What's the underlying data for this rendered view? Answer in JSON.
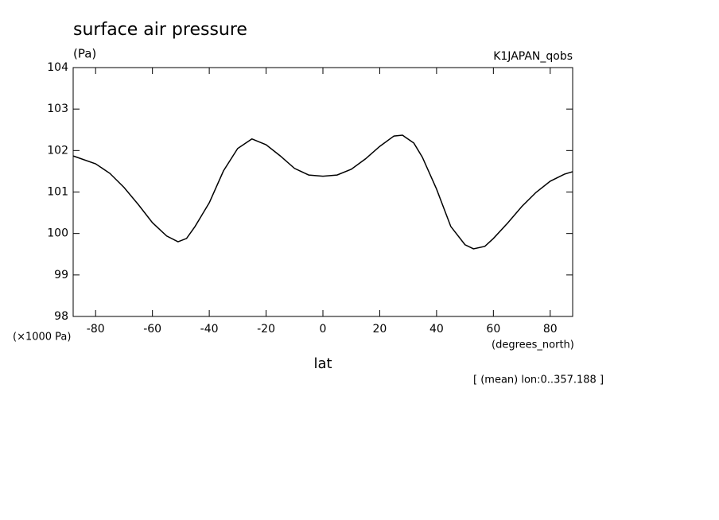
{
  "chart_data": {
    "type": "line",
    "title": "surface air pressure",
    "y_unit": "(Pa)",
    "dataset": "K1JAPAN_qobs",
    "y_scale_note": "(×1000 Pa)",
    "x_unit": "(degrees_north)",
    "x_label": "lat",
    "note": "[ (mean) lon:0..357.188 ]",
    "x": [
      -87.9,
      -80,
      -75,
      -70,
      -65,
      -60,
      -55,
      -51,
      -48,
      -45,
      -40,
      -35,
      -30,
      -25,
      -20,
      -15,
      -10,
      -5,
      0,
      5,
      10,
      15,
      20,
      25,
      28,
      32,
      35,
      40,
      45,
      50,
      53,
      57,
      60,
      65,
      70,
      75,
      80,
      85,
      87.9
    ],
    "series": [
      {
        "color": "#000000",
        "values": [
          101.87,
          101.68,
          101.45,
          101.11,
          100.7,
          100.26,
          99.94,
          99.8,
          99.88,
          100.17,
          100.74,
          101.51,
          102.05,
          102.28,
          102.14,
          101.87,
          101.57,
          101.41,
          101.38,
          101.41,
          101.55,
          101.8,
          102.1,
          102.35,
          102.37,
          102.18,
          101.84,
          101.07,
          100.17,
          99.73,
          99.63,
          99.69,
          99.88,
          100.25,
          100.65,
          100.99,
          101.26,
          101.43,
          101.49
        ]
      }
    ],
    "xlim": [
      -87.9,
      87.9
    ],
    "ylim": [
      98,
      104
    ],
    "xticks": [
      -80,
      -60,
      -40,
      -20,
      0,
      20,
      40,
      60,
      80
    ],
    "yticks": [
      98,
      99,
      100,
      101,
      102,
      103,
      104
    ]
  }
}
